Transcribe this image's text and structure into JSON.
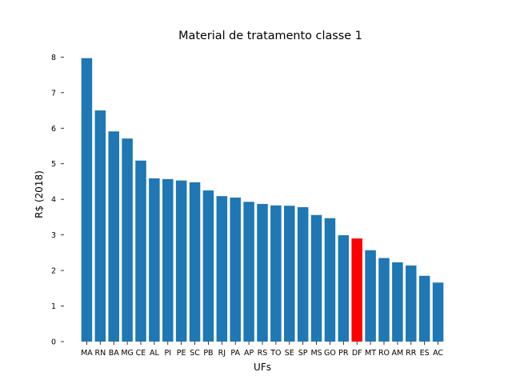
{
  "chart_data": {
    "type": "bar",
    "title": "Material de tratamento classe 1",
    "xlabel": "UFs",
    "ylabel": "R$ (2018)",
    "ylim": [
      0,
      8.3
    ],
    "yticks": [
      "0",
      "1",
      "2",
      "3",
      "4",
      "5",
      "6",
      "7",
      "8"
    ],
    "grid": false,
    "categories": [
      "MA",
      "RN",
      "BA",
      "MG",
      "CE",
      "AL",
      "PI",
      "PE",
      "SC",
      "PB",
      "RJ",
      "PA",
      "AP",
      "RS",
      "TO",
      "SE",
      "SP",
      "MS",
      "GO",
      "PR",
      "DF",
      "MT",
      "RO",
      "AM",
      "RR",
      "ES",
      "AC"
    ],
    "values": [
      7.97,
      6.5,
      5.91,
      5.71,
      5.09,
      4.59,
      4.57,
      4.53,
      4.48,
      4.25,
      4.09,
      4.05,
      3.93,
      3.87,
      3.83,
      3.82,
      3.78,
      3.56,
      3.47,
      2.99,
      2.9,
      2.57,
      2.35,
      2.23,
      2.14,
      1.85,
      1.66
    ],
    "bar_color": "#1f77b4",
    "highlight": {
      "category": "DF",
      "color": "#ff0000"
    }
  }
}
